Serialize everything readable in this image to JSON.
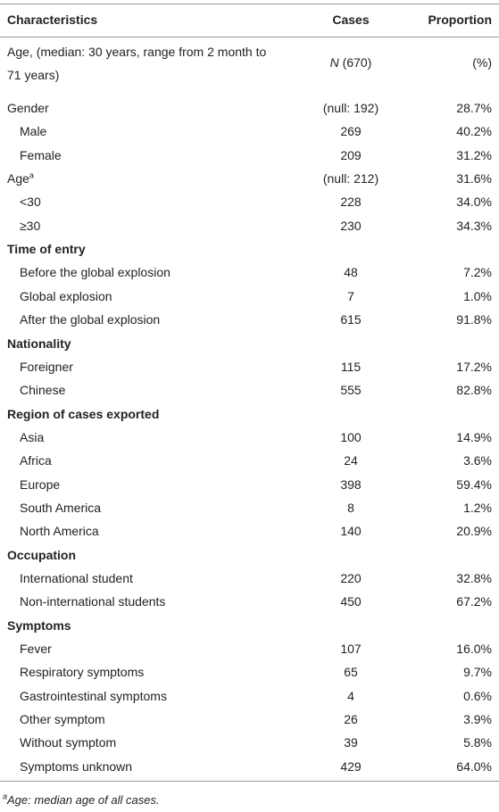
{
  "table": {
    "header": [
      "Characteristics",
      "Cases",
      "Proportion"
    ],
    "intro": {
      "label": "Age, (median: 30 years, range from 2 month to 71 years)",
      "cases_symbol": "N",
      "cases": "(670)",
      "proportion": "(%)"
    },
    "groups": [
      {
        "label": "Gender",
        "cases": "(null: 192)",
        "proportion": "28.7%",
        "items": [
          {
            "label": "Male",
            "cases": 269,
            "proportion": "40.2%"
          },
          {
            "label": "Female",
            "cases": 209,
            "proportion": "31.2%"
          }
        ]
      },
      {
        "label": "Age",
        "label_note": "a",
        "cases": "(null: 212)",
        "proportion": "31.6%",
        "items": [
          {
            "label": "<30",
            "cases": 228,
            "proportion": "34.0%"
          },
          {
            "label": "≥30",
            "cases": 230,
            "proportion": "34.3%"
          }
        ]
      },
      {
        "label": "Time of entry",
        "items": [
          {
            "label": "Before the global explosion",
            "cases": 48,
            "proportion": "7.2%"
          },
          {
            "label": "Global explosion",
            "cases": 7,
            "proportion": "1.0%"
          },
          {
            "label": "After the global explosion",
            "cases": 615,
            "proportion": "91.8%"
          }
        ]
      },
      {
        "label": "Nationality",
        "items": [
          {
            "label": "Foreigner",
            "cases": 115,
            "proportion": "17.2%"
          },
          {
            "label": "Chinese",
            "cases": 555,
            "proportion": "82.8%"
          }
        ]
      },
      {
        "label": "Region of cases exported",
        "items": [
          {
            "label": "Asia",
            "cases": 100,
            "proportion": "14.9%"
          },
          {
            "label": "Africa",
            "cases": 24,
            "proportion": "3.6%"
          },
          {
            "label": "Europe",
            "cases": 398,
            "proportion": "59.4%"
          },
          {
            "label": "South America",
            "cases": 8,
            "proportion": "1.2%"
          },
          {
            "label": "North America",
            "cases": 140,
            "proportion": "20.9%"
          }
        ]
      },
      {
        "label": "Occupation",
        "items": [
          {
            "label": "International student",
            "cases": 220,
            "proportion": "32.8%"
          },
          {
            "label": "Non-international students",
            "cases": 450,
            "proportion": "67.2%"
          }
        ]
      },
      {
        "label": "Symptoms",
        "items": [
          {
            "label": "Fever",
            "cases": 107,
            "proportion": "16.0%"
          },
          {
            "label": "Respiratory symptoms",
            "cases": 65,
            "proportion": "9.7%"
          },
          {
            "label": "Gastrointestinal symptoms",
            "cases": 4,
            "proportion": "0.6%"
          },
          {
            "label": "Other symptom",
            "cases": 26,
            "proportion": "3.9%"
          },
          {
            "label": "Without symptom",
            "cases": 39,
            "proportion": "5.8%"
          },
          {
            "label": "Symptoms unknown",
            "cases": 429,
            "proportion": "64.0%"
          }
        ]
      }
    ]
  },
  "footnote": {
    "mark": "a",
    "text": "Age: median age of all cases."
  }
}
